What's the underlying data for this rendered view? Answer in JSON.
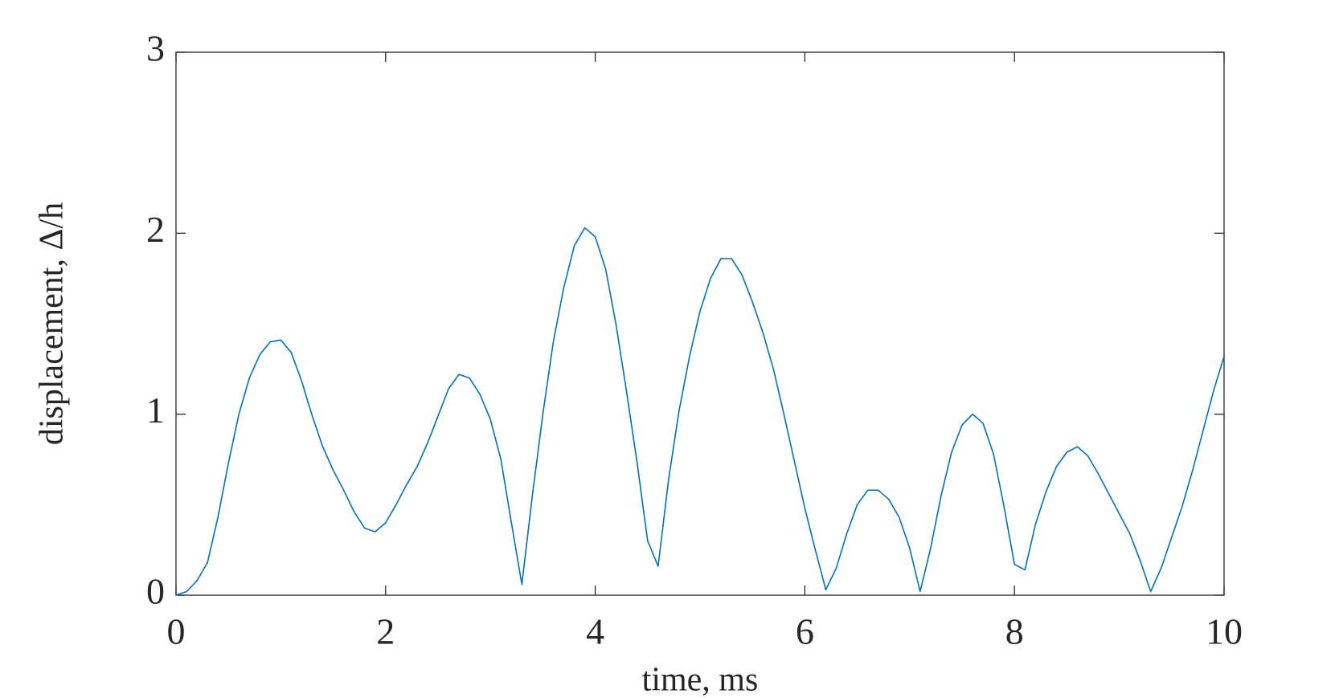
{
  "chart_data": {
    "type": "line",
    "xlabel": "time, ms",
    "ylabel": "displacement, Δ/h",
    "x": [
      0,
      0.1,
      0.2,
      0.3,
      0.4,
      0.5,
      0.6,
      0.7,
      0.8,
      0.9,
      1,
      1.1,
      1.2,
      1.3,
      1.4,
      1.5,
      1.6,
      1.7,
      1.8,
      1.9,
      2,
      2.1,
      2.2,
      2.3,
      2.4,
      2.5,
      2.6,
      2.7,
      2.8,
      2.9,
      3,
      3.1,
      3.2,
      3.3,
      3.4,
      3.5,
      3.6,
      3.7,
      3.8,
      3.9,
      4,
      4.1,
      4.2,
      4.3,
      4.4,
      4.5,
      4.6,
      4.7,
      4.8,
      4.9,
      5,
      5.1,
      5.2,
      5.3,
      5.4,
      5.5,
      5.6,
      5.7,
      5.8,
      5.9,
      6,
      6.1,
      6.2,
      6.3,
      6.4,
      6.5,
      6.6,
      6.7,
      6.8,
      6.9,
      7,
      7.1,
      7.2,
      7.3,
      7.4,
      7.5,
      7.6,
      7.7,
      7.8,
      7.9,
      8,
      8.1,
      8.2,
      8.3,
      8.4,
      8.5,
      8.6,
      8.7,
      8.8,
      8.9,
      9,
      9.1,
      9.2,
      9.3,
      9.4,
      9.5,
      9.6,
      9.7,
      9.8,
      9.9,
      10
    ],
    "series": [
      {
        "color": "#0072bd",
        "values": [
          0,
          0.02,
          0.08,
          0.18,
          0.43,
          0.73,
          1.0,
          1.2,
          1.33,
          1.4,
          1.41,
          1.34,
          1.18,
          0.99,
          0.82,
          0.69,
          0.58,
          0.46,
          0.37,
          0.35,
          0.4,
          0.5,
          0.61,
          0.71,
          0.84,
          0.99,
          1.14,
          1.22,
          1.2,
          1.11,
          0.97,
          0.75,
          0.4,
          0.06,
          0.55,
          1.0,
          1.4,
          1.7,
          1.93,
          2.03,
          1.98,
          1.8,
          1.49,
          1.12,
          0.73,
          0.3,
          0.16,
          0.64,
          1.02,
          1.32,
          1.57,
          1.75,
          1.86,
          1.86,
          1.77,
          1.62,
          1.45,
          1.25,
          1.0,
          0.74,
          0.48,
          0.25,
          0.03,
          0.15,
          0.34,
          0.5,
          0.58,
          0.58,
          0.53,
          0.43,
          0.26,
          0.02,
          0.26,
          0.55,
          0.79,
          0.94,
          1.0,
          0.95,
          0.78,
          0.49,
          0.17,
          0.14,
          0.39,
          0.57,
          0.71,
          0.79,
          0.82,
          0.77,
          0.67,
          0.56,
          0.45,
          0.34,
          0.19,
          0.02,
          0.15,
          0.32,
          0.49,
          0.69,
          0.91,
          1.13,
          1.32
        ]
      }
    ],
    "xlim": [
      0,
      10
    ],
    "xticks": [
      0,
      2,
      4,
      6,
      8,
      10
    ],
    "ylim": [
      0,
      3
    ],
    "yticks": [
      0,
      1,
      2,
      3
    ],
    "grid": false
  }
}
